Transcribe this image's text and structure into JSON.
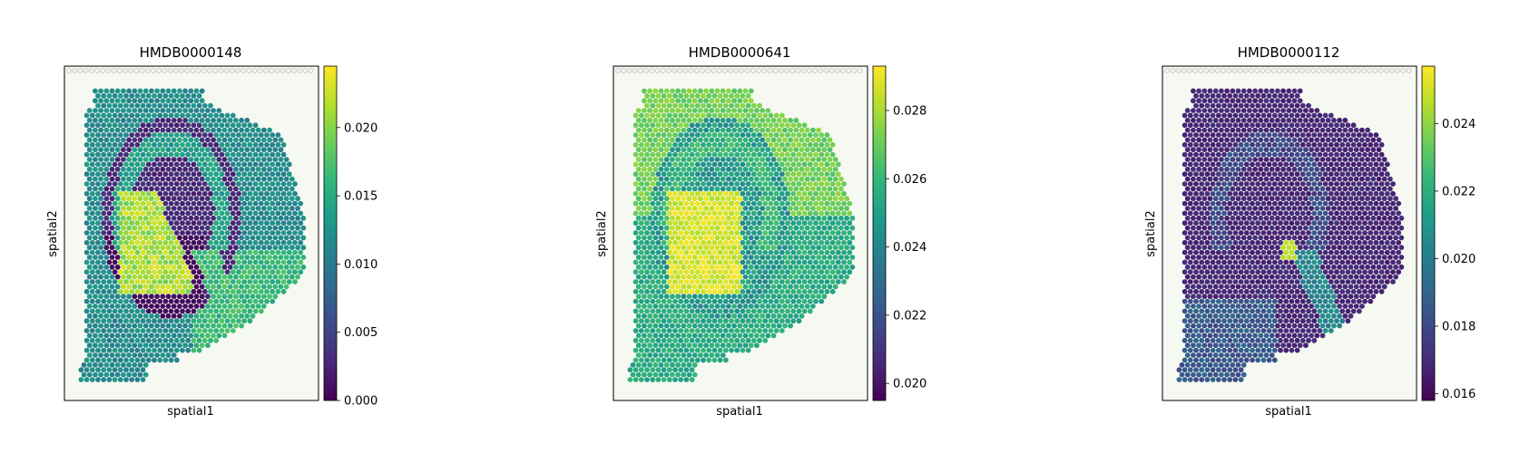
{
  "chart_data": [
    {
      "type": "heatmap",
      "title": "HMDB0000148",
      "xlabel": "spatial1",
      "ylabel": "spatial2",
      "colormap": "viridis",
      "colorbar_range": [
        0.0,
        0.0245
      ],
      "colorbar_ticks": [
        "0.000",
        "0.005",
        "0.010",
        "0.015",
        "0.020"
      ],
      "colorbar_tick_values": [
        0.0,
        0.005,
        0.01,
        0.015,
        0.02
      ]
    },
    {
      "type": "heatmap",
      "title": "HMDB0000641",
      "xlabel": "spatial1",
      "ylabel": "spatial2",
      "colormap": "viridis",
      "colorbar_range": [
        0.0195,
        0.0293
      ],
      "colorbar_ticks": [
        "0.020",
        "0.022",
        "0.024",
        "0.026",
        "0.028"
      ],
      "colorbar_tick_values": [
        0.02,
        0.022,
        0.024,
        0.026,
        0.028
      ]
    },
    {
      "type": "heatmap",
      "title": "HMDB0000112",
      "xlabel": "spatial1",
      "ylabel": "spatial2",
      "colormap": "viridis",
      "colorbar_range": [
        0.0158,
        0.0257
      ],
      "colorbar_ticks": [
        "0.016",
        "0.018",
        "0.020",
        "0.022",
        "0.024"
      ],
      "colorbar_tick_values": [
        0.016,
        0.018,
        0.02,
        0.022,
        0.024
      ]
    }
  ],
  "colors": {
    "viridis": [
      "#440154",
      "#482878",
      "#3e4989",
      "#31688e",
      "#26828e",
      "#1f9e89",
      "#35b779",
      "#6ece58",
      "#b5de2b",
      "#fde725"
    ],
    "tissue_background": "#f6f9f1",
    "reference_spot": "#c8c8c8",
    "tissue_outline": "#d66bd6"
  }
}
